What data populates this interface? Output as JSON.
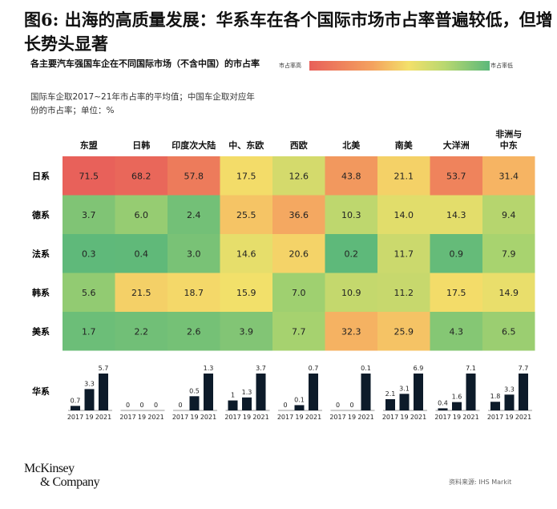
{
  "title": "图6: 出海的高质量发展：华系车在各个国际市场市占率普遍较低，但增长势头显著",
  "subtitle": "各主要汽车强国车企在不同国际市场（不含中国）的市占率",
  "note": "国际车企取2017~21年市占率的平均值；中国车企取对应年份的市占率；单位：%",
  "legend": {
    "high": "市占率高",
    "low": "市占率低"
  },
  "source": "资料来源: IHS Markit",
  "logo": {
    "line1": "McKinsey",
    "line2": "& Company"
  },
  "chart_data": [
    {
      "type": "heatmap",
      "columns": [
        "东盟",
        "日韩",
        "印度次大陆",
        "中、东欧",
        "西欧",
        "北美",
        "南美",
        "大洋洲",
        "非洲与中东"
      ],
      "rows": [
        "日系",
        "德系",
        "法系",
        "韩系",
        "美系"
      ],
      "values": [
        [
          71.5,
          68.2,
          57.8,
          17.5,
          12.6,
          43.8,
          21.1,
          53.7,
          31.4
        ],
        [
          3.7,
          6.0,
          2.4,
          25.5,
          36.6,
          10.3,
          14.0,
          14.3,
          9.4
        ],
        [
          0.3,
          0.4,
          3.0,
          14.6,
          20.6,
          0.2,
          11.7,
          0.9,
          7.9
        ],
        [
          5.6,
          21.5,
          18.7,
          15.9,
          7.0,
          10.9,
          11.2,
          17.5,
          14.9
        ],
        [
          1.7,
          2.2,
          2.6,
          3.9,
          7.7,
          32.3,
          25.9,
          4.3,
          6.5
        ]
      ],
      "colors": {
        "high": "#e8605a",
        "mid": "#f3e06a",
        "low": "#5cb87a"
      }
    },
    {
      "type": "bar",
      "row_label": "华系",
      "categories": [
        "2017",
        "19",
        "2021"
      ],
      "groups": [
        [
          0.7,
          3.3,
          5.7
        ],
        [
          0,
          0,
          0
        ],
        [
          0,
          0.5,
          1.3
        ],
        [
          1.0,
          1.3,
          3.7
        ],
        [
          0,
          0.1,
          0.7
        ],
        [
          0,
          0,
          0.1
        ],
        [
          2.1,
          3.1,
          6.9
        ],
        [
          0.4,
          1.6,
          7.1
        ],
        [
          1.8,
          3.3,
          7.7
        ]
      ],
      "bar_color": "#0d1b2a"
    }
  ]
}
